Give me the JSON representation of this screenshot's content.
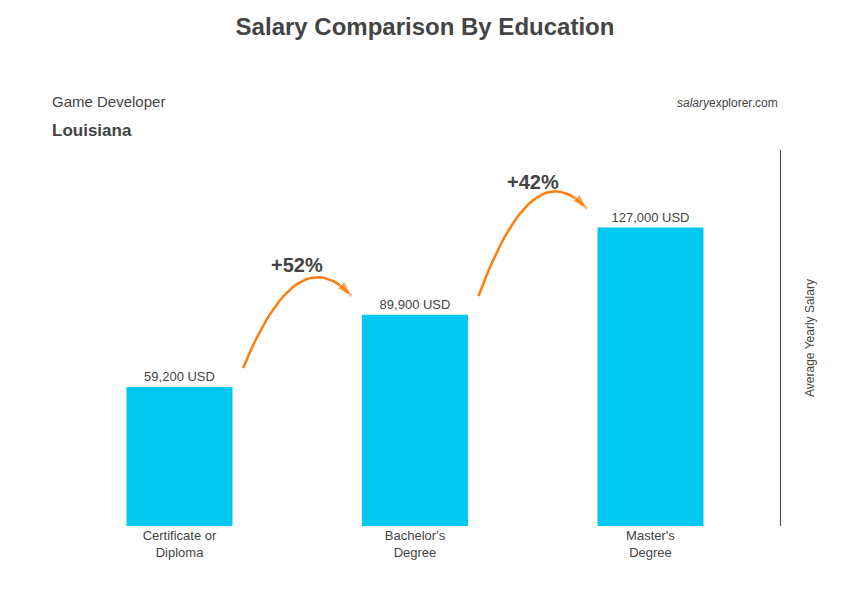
{
  "chart_data": {
    "type": "bar",
    "title": "Salary Comparison By Education",
    "subtitle": [
      "Game Developer",
      "Louisiana"
    ],
    "watermark": [
      "salary",
      "explorer.com"
    ],
    "ylabel": "Average Yearly Salary",
    "categories": [
      "Certificate or\nDiploma",
      "Bachelor's\nDegree",
      "Master's\nDegree"
    ],
    "values": [
      59200,
      89900,
      127000
    ],
    "value_labels": [
      "59,200 USD",
      "89,900 USD",
      "127,000 USD"
    ],
    "data_labels": true,
    "annotations": [
      "+52%",
      "+42%"
    ],
    "color": "#00c8f0",
    "ylim": [
      0,
      160000
    ],
    "yticks": [],
    "tick_labels": "x",
    "grid": false
  }
}
